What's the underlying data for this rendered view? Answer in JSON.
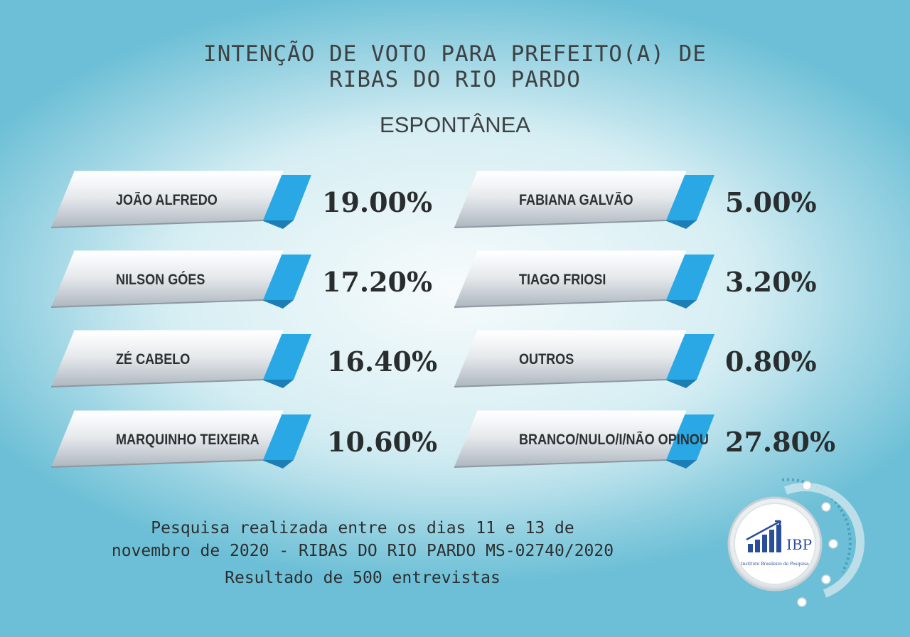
{
  "title_line1": "INTENÇÃO DE VOTO PARA PREFEITO(A) DE",
  "title_line2": "RIBAS DO RIO PARDO",
  "subtitle": "ESPONTÂNEA",
  "chart_data": {
    "type": "table",
    "title": "INTENÇÃO DE VOTO PARA PREFEITO(A) DE RIBAS DO RIO PARDO",
    "subtitle": "ESPONTÂNEA",
    "categories": [
      "JOÃO ALFREDO",
      "NILSON GÓES",
      "ZÉ CABELO",
      "MARQUINHO TEIXEIRA",
      "FABIANA GALVÃO",
      "TIAGO FRIOSI",
      "OUTROS",
      "BRANCO/NULO/I/NÃO OPINOU"
    ],
    "values": [
      19.0,
      17.2,
      16.4,
      10.6,
      5.0,
      3.2,
      0.8,
      27.8
    ],
    "labels": [
      "19.00%",
      "17.20%",
      "16.40%",
      "10.60%",
      "5.00%",
      "3.20%",
      "0.80%",
      "27.80%"
    ]
  },
  "colors": {
    "accent": "#2aa8e6",
    "ribbon": "#dfe4e8",
    "text": "#2e3133"
  },
  "footer": {
    "line1": "Pesquisa realizada entre os dias 11 e 13 de",
    "line2": "novembro de 2020 - RIBAS DO RIO PARDO MS-02740/2020",
    "line3": "Resultado de 500 entrevistas"
  },
  "logo": {
    "text": "IBP",
    "caption": "Instituto Brasileiro de Pesquisa"
  }
}
